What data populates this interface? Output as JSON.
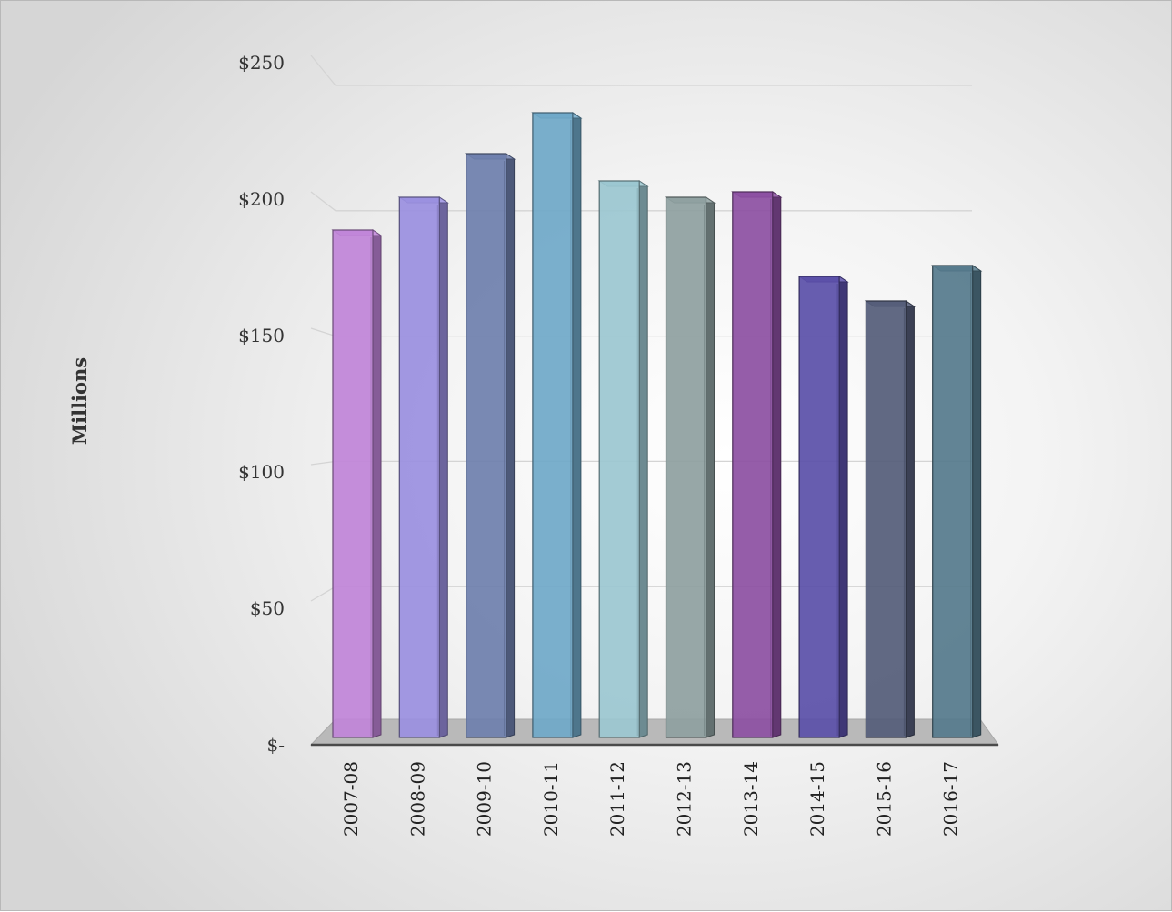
{
  "chart_data": {
    "type": "bar",
    "three_d": true,
    "categories": [
      "2007-08",
      "2008-09",
      "2009-10",
      "2010-11",
      "2011-12",
      "2012-13",
      "2013-14",
      "2014-15",
      "2015-16",
      "2016-17"
    ],
    "values": [
      186,
      198,
      214,
      229,
      204,
      198,
      200,
      169,
      160,
      173
    ],
    "ylabel": "Millions",
    "ylim": [
      0,
      250
    ],
    "yticks": [
      0,
      50,
      100,
      150,
      200,
      250
    ],
    "ytick_labels": [
      "$-",
      "$50",
      "$100",
      "$150",
      "$200",
      "$250"
    ],
    "grid": true,
    "legend": "none",
    "bar_colors": [
      "#c084d8",
      "#9a8fe0",
      "#6e7fad",
      "#6fa8c8",
      "#9bc7d0",
      "#8ea0a0",
      "#8c4fa2",
      "#5a4fa8",
      "#545c78",
      "#557a8c"
    ]
  }
}
